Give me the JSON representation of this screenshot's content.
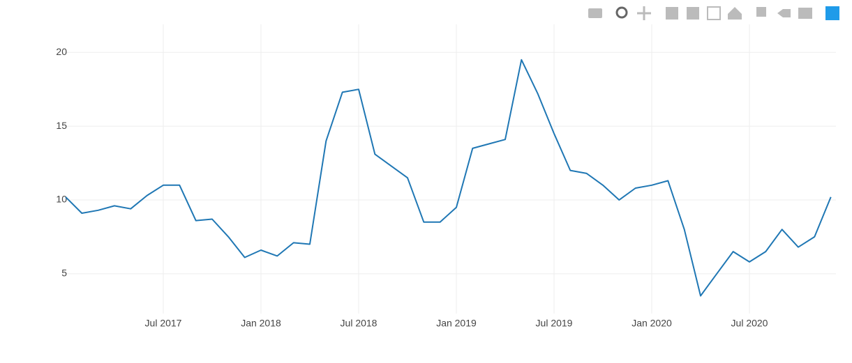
{
  "chart_data": {
    "type": "line",
    "x": [
      "2017-01",
      "2017-02",
      "2017-03",
      "2017-04",
      "2017-05",
      "2017-06",
      "2017-07",
      "2017-08",
      "2017-09",
      "2017-10",
      "2017-11",
      "2017-12",
      "2018-01",
      "2018-02",
      "2018-03",
      "2018-04",
      "2018-05",
      "2018-06",
      "2018-07",
      "2018-08",
      "2018-09",
      "2018-10",
      "2018-11",
      "2018-12",
      "2019-01",
      "2019-02",
      "2019-03",
      "2019-04",
      "2019-05",
      "2019-06",
      "2019-07",
      "2019-08",
      "2019-09",
      "2019-10",
      "2019-11",
      "2019-12",
      "2020-01",
      "2020-02",
      "2020-03",
      "2020-04",
      "2020-05",
      "2020-06",
      "2020-07",
      "2020-08",
      "2020-09",
      "2020-10",
      "2020-11",
      "2020-12"
    ],
    "series": [
      {
        "color": "#1f77b4",
        "values": [
          10.2,
          9.1,
          9.3,
          9.6,
          9.4,
          10.3,
          11.0,
          11.0,
          8.6,
          8.7,
          7.5,
          6.1,
          6.6,
          6.2,
          7.1,
          7.0,
          14.0,
          17.3,
          17.5,
          13.1,
          12.3,
          11.5,
          8.5,
          8.5,
          9.5,
          13.5,
          13.8,
          14.1,
          19.5,
          17.2,
          14.5,
          12.0,
          11.8,
          11.0,
          10.0,
          10.8,
          11.0,
          11.3,
          8.0,
          3.5,
          5.0,
          6.5,
          5.8,
          6.5,
          8.0,
          6.8,
          7.5,
          10.2
        ]
      }
    ],
    "xticks": [
      {
        "value": "2017-07",
        "label": "Jul 2017"
      },
      {
        "value": "2018-01",
        "label": "Jan 2018"
      },
      {
        "value": "2018-07",
        "label": "Jul 2018"
      },
      {
        "value": "2019-01",
        "label": "Jan 2019"
      },
      {
        "value": "2019-07",
        "label": "Jul 2019"
      },
      {
        "value": "2020-01",
        "label": "Jan 2020"
      },
      {
        "value": "2020-07",
        "label": "Jul 2020"
      }
    ],
    "ylim": [
      2.3,
      21.9
    ],
    "yticks": [
      5,
      10,
      15,
      20
    ],
    "grid": true
  }
}
